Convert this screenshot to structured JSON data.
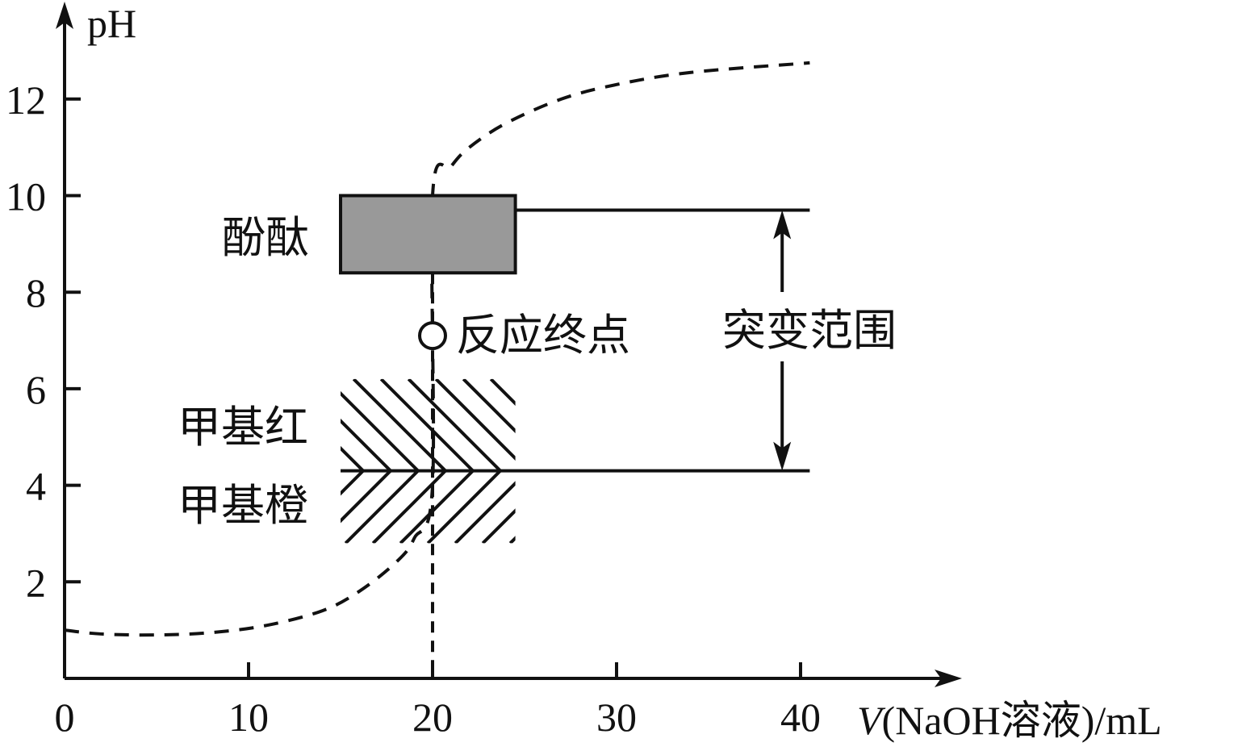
{
  "chart_data": {
    "type": "line",
    "ylabel": "pH",
    "xlabel_parts": [
      "V",
      "(NaOH溶液)/mL"
    ],
    "xlim": [
      0,
      48
    ],
    "ylim": [
      0,
      13.5
    ],
    "x_ticks": [
      0,
      10,
      20,
      30,
      40
    ],
    "y_ticks": [
      2,
      4,
      6,
      8,
      10,
      12
    ],
    "curve": {
      "style": "dashed",
      "points": [
        [
          0,
          1.0
        ],
        [
          2,
          0.92
        ],
        [
          5,
          0.9
        ],
        [
          8,
          0.95
        ],
        [
          11,
          1.1
        ],
        [
          14,
          1.4
        ],
        [
          16,
          1.8
        ],
        [
          18,
          2.4
        ],
        [
          19,
          2.9
        ],
        [
          20,
          4.0
        ],
        [
          20,
          10.0
        ],
        [
          21,
          10.6
        ],
        [
          22,
          11.0
        ],
        [
          24,
          11.5
        ],
        [
          27,
          12.0
        ],
        [
          30,
          12.3
        ],
        [
          34,
          12.55
        ],
        [
          40.5,
          12.75
        ]
      ]
    },
    "end_point": {
      "x": 20,
      "y": 7.1,
      "label": "反应终点"
    },
    "phenolphthalein": {
      "label": "酚酞",
      "x_range": [
        15,
        24.5
      ],
      "y_range": [
        8.4,
        10
      ],
      "fill": "#999999"
    },
    "methyl_red": {
      "label": "甲基红",
      "x_range": [
        15,
        24.5
      ],
      "y_range": [
        4.3,
        6.2
      ]
    },
    "methyl_orange": {
      "label": "甲基橙",
      "x_range": [
        15,
        24.5
      ],
      "y_range": [
        2.8,
        4.3
      ]
    },
    "jump_range": {
      "label": "突变范围",
      "upper": 9.7,
      "lower": 4.3,
      "x_end": 40.5,
      "arrow_x": 39
    }
  }
}
